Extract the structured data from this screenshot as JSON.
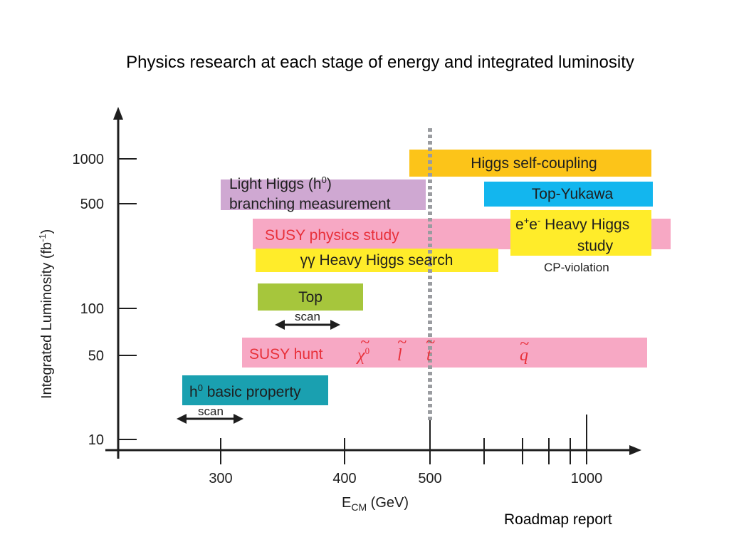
{
  "title": "Physics research at each stage of energy and integrated luminosity",
  "y_axis": {
    "label": "Integrated Luminosity (fb",
    "label_sup": "-1",
    "label_end": ")",
    "ticks": [
      "1000",
      "500",
      "100",
      "50",
      "10"
    ]
  },
  "x_axis": {
    "label_main": "E",
    "label_sub": "CM",
    "label_unit": " (GeV)",
    "ticks": [
      "300",
      "400",
      "500",
      "1000"
    ]
  },
  "boxes": {
    "higgs_self": {
      "text": "Higgs self-coupling",
      "color": "#fcc419"
    },
    "light_higgs": {
      "line1_a": "Light Higgs (h",
      "line1_sup": "0",
      "line1_b": ")",
      "line2": "branching measurement",
      "color": "#cfa8d2"
    },
    "top_yukawa": {
      "text": "Top-Yukawa",
      "color": "#13b6ee"
    },
    "susy_study": {
      "text": "SUSY  physics study",
      "color": "#f7a8c4"
    },
    "ee_heavy": {
      "line1_a": "e",
      "line1_sup1": "+",
      "line1_mid": "e",
      "line1_sup2": "-",
      "line1_b": " Heavy Higgs",
      "line2": "study",
      "color": "#ffec2a"
    },
    "gg_heavy": {
      "text": "γγ Heavy Higgs search",
      "color": "#ffec2a"
    },
    "top": {
      "text": "Top",
      "color": "#a6c63c"
    },
    "susy_hunt": {
      "text": "SUSY hunt",
      "color": "#f7a8c4",
      "particles": [
        "χ",
        "l",
        "t",
        "q"
      ],
      "chi_sup": "0"
    },
    "h0_basic": {
      "text_sup": "0",
      "text_a": "h",
      "text_b": " basic property",
      "color": "#1aa0b0"
    }
  },
  "labels": {
    "cp_violation": "CP-violation",
    "scan1": "scan",
    "scan2": "scan"
  },
  "footer": "Roadmap report"
}
